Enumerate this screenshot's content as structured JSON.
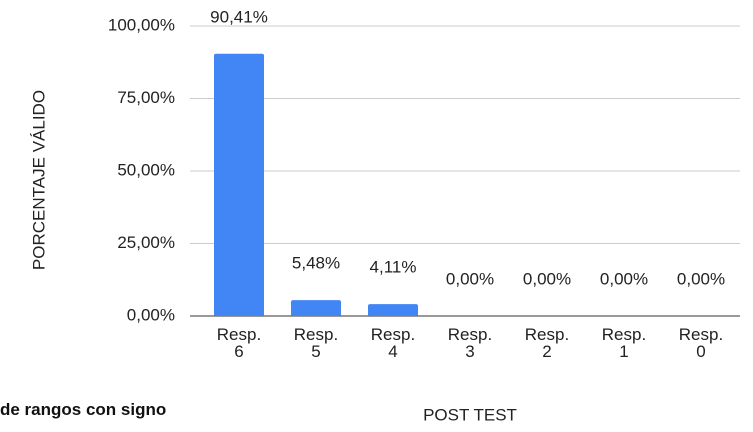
{
  "chart_data": {
    "type": "bar",
    "categories": [
      "Resp. 6",
      "Resp. 5",
      "Resp. 4",
      "Resp. 3",
      "Resp. 2",
      "Resp. 1",
      "Resp. 0"
    ],
    "values": [
      90.41,
      5.48,
      4.11,
      0,
      0,
      0,
      0
    ],
    "value_labels": [
      "90,41%",
      "5,48%",
      "4,11%",
      "0,00%",
      "0,00%",
      "0,00%",
      "0,00%"
    ],
    "color": "#4285f4",
    "ylim": [
      0,
      100
    ],
    "yticks": [
      {
        "value": 0,
        "label": "0,00%"
      },
      {
        "value": 25,
        "label": "25,00%"
      },
      {
        "value": 50,
        "label": "50,00%"
      },
      {
        "value": 75,
        "label": "75,00%"
      },
      {
        "value": 100,
        "label": "100,00%"
      }
    ],
    "grid": true,
    "ylabel": "PORCENTAJE VÁLIDO",
    "xlabel": "POST TEST",
    "annotation": "de rangos con signo"
  }
}
